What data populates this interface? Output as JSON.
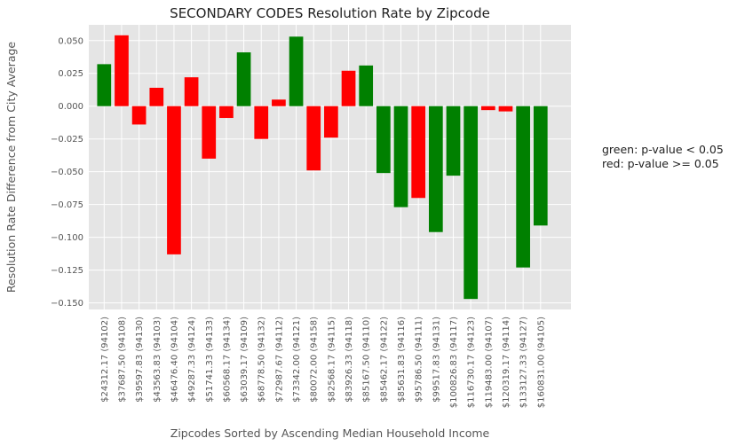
{
  "chart_data": {
    "type": "bar",
    "title": "SECONDARY CODES Resolution Rate by Zipcode",
    "xlabel": "Zipcodes Sorted by Ascending Median Household Income",
    "ylabel": "Resolution Rate Difference from City Average",
    "ylim": [
      -0.155,
      0.062
    ],
    "yticks": [
      "0.050",
      "0.025",
      "0.000",
      "−0.025",
      "−0.050",
      "−0.075",
      "−0.100",
      "−0.125",
      "−0.150"
    ],
    "ytick_values": [
      0.05,
      0.025,
      0.0,
      -0.025,
      -0.05,
      -0.075,
      -0.1,
      -0.125,
      -0.15
    ],
    "grid": true,
    "categories": [
      "$24312.17 (94102)",
      "$37687.50 (94108)",
      "$39597.83 (94130)",
      "$43563.83 (94103)",
      "$46476.40 (94104)",
      "$49287.33 (94124)",
      "$51741.33 (94133)",
      "$60568.17 (94134)",
      "$63039.17 (94109)",
      "$68778.50 (94132)",
      "$72987.67 (94112)",
      "$73342.00 (94121)",
      "$80072.00 (94158)",
      "$82568.17 (94115)",
      "$83926.33 (94118)",
      "$85167.50 (94110)",
      "$85462.17 (94122)",
      "$85631.83 (94116)",
      "$95786.50 (94111)",
      "$99517.83 (94131)",
      "$100826.83 (94117)",
      "$116730.17 (94123)",
      "$119483.00 (94107)",
      "$120319.17 (94114)",
      "$133127.33 (94127)",
      "$160831.00 (94105)"
    ],
    "values": [
      0.032,
      0.054,
      -0.014,
      0.014,
      -0.113,
      0.022,
      -0.04,
      -0.009,
      0.041,
      -0.025,
      0.005,
      0.053,
      -0.049,
      -0.024,
      0.027,
      0.031,
      -0.051,
      -0.077,
      -0.07,
      -0.096,
      -0.053,
      -0.147,
      -0.003,
      -0.004,
      -0.123,
      -0.091
    ],
    "significance": [
      "green",
      "red",
      "red",
      "red",
      "red",
      "red",
      "red",
      "red",
      "green",
      "red",
      "red",
      "green",
      "red",
      "red",
      "red",
      "green",
      "green",
      "green",
      "red",
      "green",
      "green",
      "green",
      "red",
      "red",
      "green",
      "green"
    ],
    "colors": {
      "green": "#008000",
      "red": "#ff0000",
      "plot_bg": "#e5e5e5",
      "grid": "#ffffff"
    },
    "annotations": [
      "green: p-value < 0.05",
      "red: p-value >= 0.05"
    ]
  }
}
